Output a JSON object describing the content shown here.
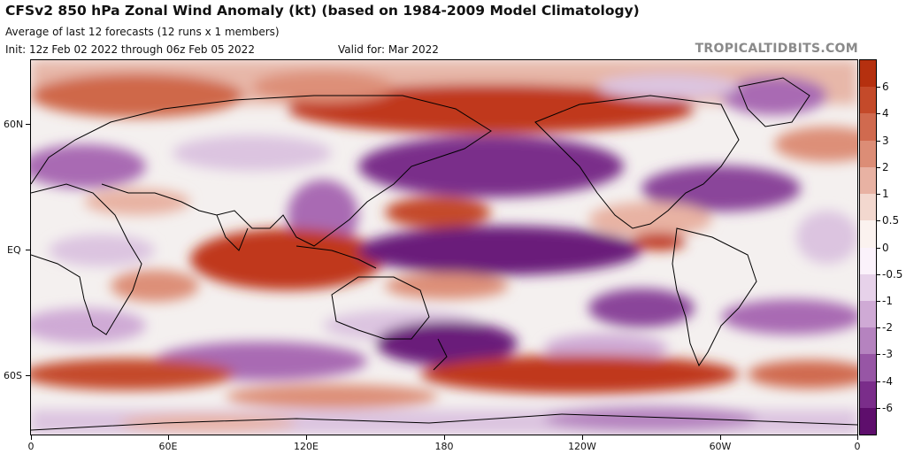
{
  "header": {
    "title": "CFSv2 850 hPa Zonal Wind Anomaly (kt) (based on 1984-2009 Model Climatology)",
    "subtitle": "Average of last 12 forecasts (12 runs x 1 members)",
    "init": "Init: 12z Feb 02 2022 through 06z Feb 05 2022",
    "valid": "Valid for: Mar 2022",
    "brand": "TROPICALTIDBITS.COM"
  },
  "map": {
    "y_axis_labels": [
      "60N",
      "EQ",
      "60S"
    ],
    "x_axis_labels": [
      "0",
      "60E",
      "120E",
      "180",
      "120W",
      "60W",
      "0"
    ],
    "projection": "equirectangular",
    "colors": {
      "positive_strong": "#c0391e",
      "positive_mid": "#dd8f78",
      "positive_weak": "#f0c9bd",
      "neutral": "#f4f0ef",
      "negative_weak": "#dcc4e0",
      "negative_mid": "#a96bb3",
      "negative_strong": "#6b1f7a"
    }
  },
  "colorbar": {
    "labels": [
      "6",
      "4",
      "3",
      "2",
      "1",
      "0.5",
      "0",
      "-0.5",
      "-1",
      "-2",
      "-3",
      "-4",
      "-6"
    ],
    "colors": [
      "#b5300f",
      "#c44a2a",
      "#d06a4f",
      "#dc8d76",
      "#e8b2a3",
      "#f3d8cf",
      "#fbf2ef",
      "#fbf2fb",
      "#e7d2ea",
      "#cfaad5",
      "#b583bf",
      "#9756a5",
      "#7a2d8a",
      "#5e0e6c"
    ]
  }
}
